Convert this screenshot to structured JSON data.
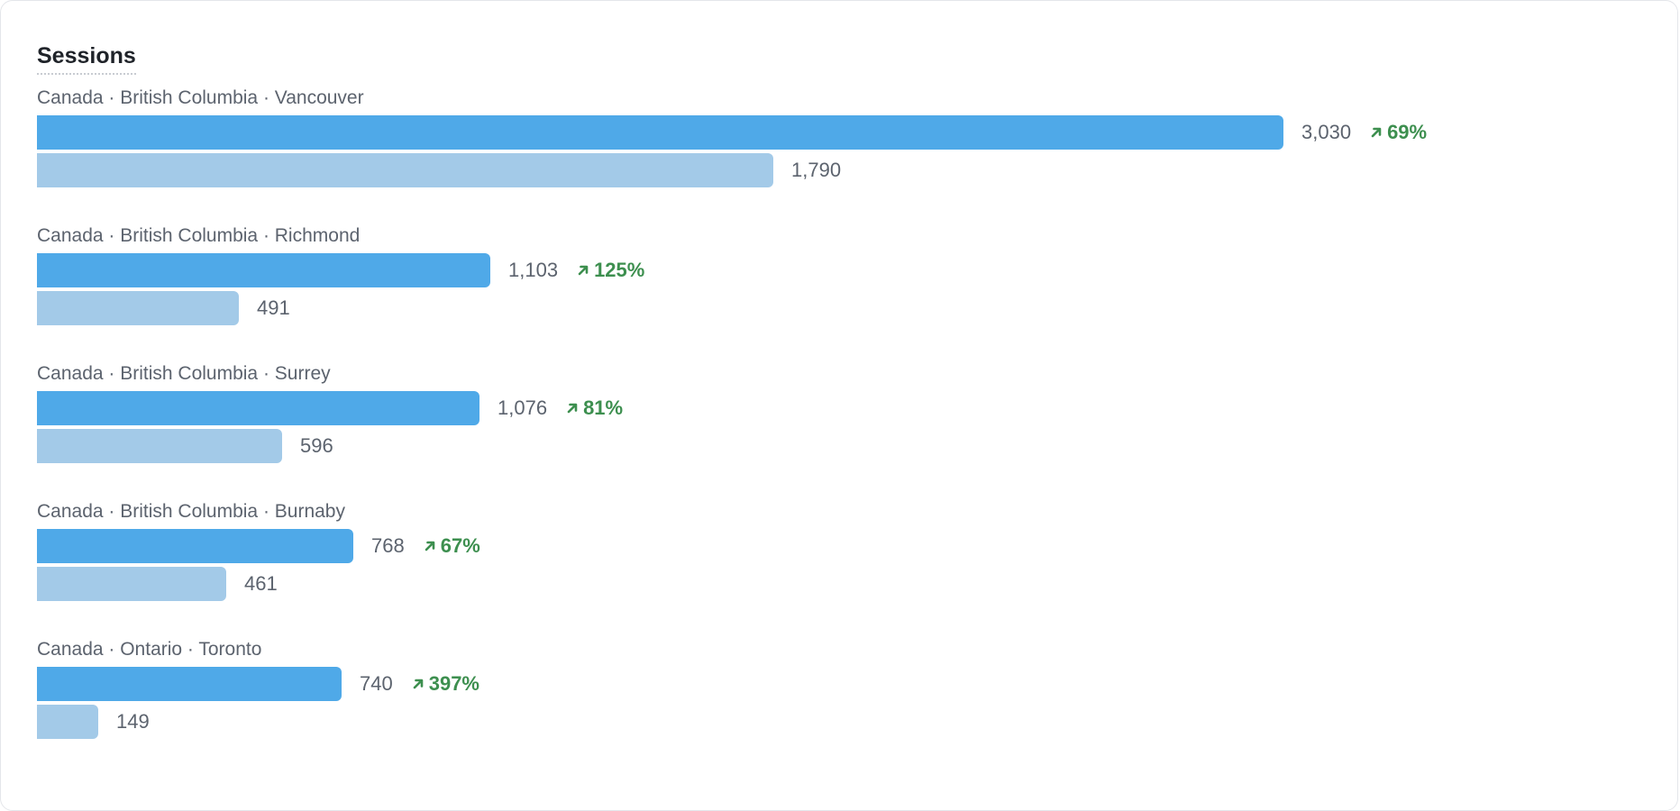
{
  "card": {
    "title": "Sessions"
  },
  "colors": {
    "current_bar": "#4fa9e8",
    "previous_bar": "#a3cae8",
    "change_positive": "#3d8f4f",
    "label_text": "#5c636e"
  },
  "chart_data": {
    "type": "bar",
    "orientation": "horizontal",
    "title": "Sessions",
    "categories": [
      "Canada · British Columbia · Vancouver",
      "Canada · British Columbia · Richmond",
      "Canada · British Columbia · Surrey",
      "Canada · British Columbia · Burnaby",
      "Canada · Ontario · Toronto"
    ],
    "series": [
      {
        "values": [
          3030,
          1103,
          1076,
          768,
          740
        ]
      },
      {
        "values": [
          1790,
          491,
          596,
          461,
          149
        ]
      }
    ],
    "display": {
      "current": [
        "3,030",
        "1,103",
        "1,076",
        "768",
        "740"
      ],
      "previous": [
        "1,790",
        "491",
        "596",
        "461",
        "149"
      ],
      "change": [
        "69%",
        "125%",
        "81%",
        "67%",
        "397%"
      ]
    },
    "change_icon": "arrow-up-right-icon",
    "xlim": [
      0,
      3030
    ],
    "grid": false
  }
}
